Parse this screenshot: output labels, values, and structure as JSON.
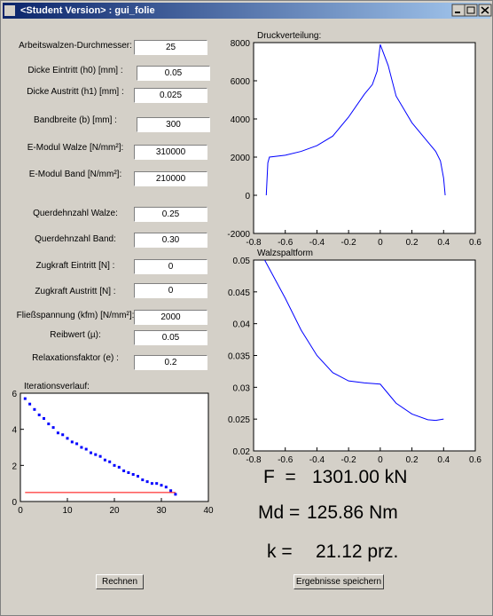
{
  "window": {
    "title": "<Student Version> : gui_folie"
  },
  "form": {
    "fields": [
      {
        "label": "Arbeitswalzen-Durchmesser:",
        "value": "25"
      },
      {
        "label": "Dicke Eintritt (h0) [mm] :",
        "value": "0.05"
      },
      {
        "label": "Dicke Austritt (h1) [mm] :",
        "value": "0.025"
      },
      {
        "label": "Bandbreite (b) [mm] :",
        "value": "300"
      },
      {
        "label": "E-Modul Walze [N/mm²]:",
        "value": "310000"
      },
      {
        "label": "E-Modul Band [N/mm²]:",
        "value": "210000"
      },
      {
        "label": "Querdehnzahl Walze:",
        "value": "0.25"
      },
      {
        "label": "Querdehnzahl Band:",
        "value": "0.30"
      },
      {
        "label": "Zugkraft Eintritt [N] :",
        "value": "0"
      },
      {
        "label": "Zugkraft Austritt [N] :",
        "value": "0"
      },
      {
        "label": "Fließspannung (kfm) [N/mm²]:",
        "value": "2000"
      },
      {
        "label": "Reibwert (µ):",
        "value": "0.05"
      },
      {
        "label": "Relaxationsfaktor (e) :",
        "value": "0.2"
      }
    ]
  },
  "results": [
    {
      "label": "F  =",
      "value": "1301.00 kN"
    },
    {
      "label": "Md =",
      "value": "125.86 Nm"
    },
    {
      "label": "k =",
      "value": "21.12 prz."
    }
  ],
  "buttons": [
    "Rechnen",
    "Ergebnisse speichern"
  ],
  "chart_data": [
    {
      "type": "line",
      "title": "Druckverteilung:",
      "xlim": [
        -0.8,
        0.6
      ],
      "xticks": [
        -0.8,
        -0.6,
        -0.4,
        -0.2,
        0,
        0.2,
        0.4,
        0.6
      ],
      "ylim": [
        -2000,
        8000
      ],
      "yticks": [
        -2000,
        0,
        2000,
        4000,
        6000,
        8000
      ],
      "series": [
        {
          "color": "#0000ff",
          "x": [
            -0.72,
            -0.71,
            -0.7,
            -0.6,
            -0.5,
            -0.4,
            -0.3,
            -0.2,
            -0.1,
            -0.05,
            -0.02,
            0,
            0.05,
            0.1,
            0.2,
            0.3,
            0.35,
            0.38,
            0.4,
            0.41
          ],
          "values": [
            0,
            1700,
            2000,
            2100,
            2300,
            2600,
            3100,
            4100,
            5300,
            5800,
            6500,
            7900,
            6800,
            5200,
            3800,
            2800,
            2300,
            1800,
            900,
            0
          ]
        }
      ]
    },
    {
      "type": "line",
      "title": "Walzspaltform",
      "xlim": [
        -0.8,
        0.6
      ],
      "xticks": [
        -0.8,
        -0.6,
        -0.4,
        -0.2,
        0,
        0.2,
        0.4,
        0.6
      ],
      "ylim": [
        0.02,
        0.05
      ],
      "yticks": [
        0.02,
        0.025,
        0.03,
        0.035,
        0.04,
        0.045,
        0.05
      ],
      "series": [
        {
          "color": "#0000ff",
          "x": [
            -0.73,
            -0.6,
            -0.5,
            -0.4,
            -0.3,
            -0.2,
            -0.1,
            0,
            0.05,
            0.1,
            0.2,
            0.3,
            0.35,
            0.4
          ],
          "values": [
            0.05,
            0.044,
            0.039,
            0.035,
            0.0323,
            0.031,
            0.0307,
            0.0305,
            0.029,
            0.0275,
            0.0258,
            0.0249,
            0.0248,
            0.025
          ]
        }
      ]
    },
    {
      "type": "scatter",
      "title": "Iterationsverlauf:",
      "xlim": [
        0,
        40
      ],
      "xticks": [
        0,
        10,
        20,
        30,
        40
      ],
      "ylim": [
        0,
        6
      ],
      "yticks": [
        0,
        2,
        4,
        6
      ],
      "series": [
        {
          "color": "#0000ff",
          "mode": "markers",
          "x": [
            1,
            2,
            3,
            4,
            5,
            6,
            7,
            8,
            9,
            10,
            11,
            12,
            13,
            14,
            15,
            16,
            17,
            18,
            19,
            20,
            21,
            22,
            23,
            24,
            25,
            26,
            27,
            28,
            29,
            30,
            31,
            32,
            33
          ],
          "values": [
            5.7,
            5.4,
            5.1,
            4.8,
            4.6,
            4.3,
            4.1,
            3.8,
            3.7,
            3.5,
            3.3,
            3.2,
            3.0,
            2.9,
            2.7,
            2.6,
            2.5,
            2.3,
            2.2,
            2.0,
            1.9,
            1.7,
            1.6,
            1.5,
            1.4,
            1.2,
            1.1,
            1.0,
            1.0,
            0.9,
            0.8,
            0.6,
            0.4
          ]
        },
        {
          "color": "#ff0000",
          "mode": "lines",
          "x": [
            1,
            33
          ],
          "values": [
            0.5,
            0.5
          ]
        }
      ]
    }
  ]
}
